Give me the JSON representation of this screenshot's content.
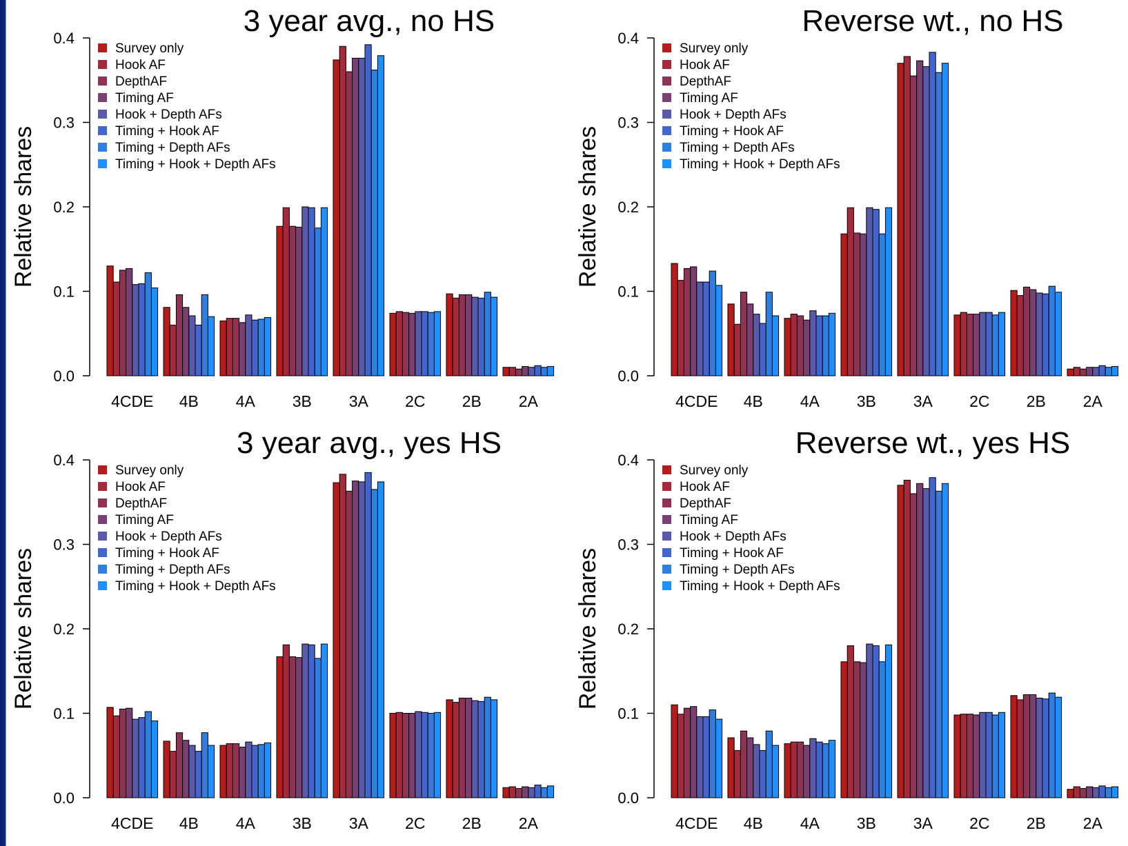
{
  "series_names": [
    "Survey only",
    "Hook AF",
    "DepthAF",
    "Timing AF",
    "Hook + Depth AFs",
    "Timing + Hook AF",
    "Timing + Depth AFs",
    "Timing + Hook + Depth AFs"
  ],
  "series_colors": [
    "#b71c1c",
    "#a52a3c",
    "#8e3356",
    "#7a3f73",
    "#5a5aaa",
    "#4466cc",
    "#2e7fe0",
    "#1e90ff"
  ],
  "chart_data": [
    {
      "type": "bar",
      "title": "3 year avg., no HS",
      "ylabel": "Relative shares",
      "ylim": [
        0,
        0.4
      ],
      "yticks": [
        "0.0",
        "0.1",
        "0.2",
        "0.3",
        "0.4"
      ],
      "categories": [
        "4CDE",
        "4B",
        "4A",
        "3B",
        "3A",
        "2C",
        "2B",
        "2A"
      ],
      "series": [
        {
          "name": "Survey only",
          "values": [
            0.13,
            0.081,
            0.065,
            0.177,
            0.374,
            0.074,
            0.097,
            0.01
          ]
        },
        {
          "name": "Hook AF",
          "values": [
            0.111,
            0.06,
            0.068,
            0.199,
            0.39,
            0.076,
            0.092,
            0.01
          ]
        },
        {
          "name": "DepthAF",
          "values": [
            0.125,
            0.096,
            0.068,
            0.177,
            0.36,
            0.075,
            0.096,
            0.008
          ]
        },
        {
          "name": "Timing AF",
          "values": [
            0.127,
            0.081,
            0.063,
            0.176,
            0.376,
            0.074,
            0.096,
            0.011
          ]
        },
        {
          "name": "Hook + Depth AFs",
          "values": [
            0.108,
            0.071,
            0.072,
            0.2,
            0.376,
            0.076,
            0.093,
            0.01
          ]
        },
        {
          "name": "Timing + Hook AF",
          "values": [
            0.109,
            0.06,
            0.066,
            0.199,
            0.392,
            0.076,
            0.092,
            0.012
          ]
        },
        {
          "name": "Timing + Depth AFs",
          "values": [
            0.122,
            0.096,
            0.067,
            0.175,
            0.362,
            0.075,
            0.099,
            0.01
          ]
        },
        {
          "name": "Timing + Hook + Depth AFs",
          "values": [
            0.104,
            0.07,
            0.069,
            0.199,
            0.379,
            0.076,
            0.093,
            0.011
          ]
        }
      ]
    },
    {
      "type": "bar",
      "title": "Reverse wt., no HS",
      "ylabel": "Relative shares",
      "ylim": [
        0,
        0.4
      ],
      "yticks": [
        "0.0",
        "0.1",
        "0.2",
        "0.3",
        "0.4"
      ],
      "categories": [
        "4CDE",
        "4B",
        "4A",
        "3B",
        "3A",
        "2C",
        "2B",
        "2A"
      ],
      "series": [
        {
          "name": "Survey only",
          "values": [
            0.133,
            0.085,
            0.068,
            0.168,
            0.37,
            0.072,
            0.101,
            0.008
          ]
        },
        {
          "name": "Hook AF",
          "values": [
            0.113,
            0.061,
            0.073,
            0.199,
            0.378,
            0.075,
            0.095,
            0.01
          ]
        },
        {
          "name": "DepthAF",
          "values": [
            0.127,
            0.099,
            0.071,
            0.169,
            0.355,
            0.073,
            0.105,
            0.008
          ]
        },
        {
          "name": "Timing AF",
          "values": [
            0.129,
            0.085,
            0.066,
            0.168,
            0.373,
            0.073,
            0.102,
            0.01
          ]
        },
        {
          "name": "Hook + Depth AFs",
          "values": [
            0.111,
            0.073,
            0.077,
            0.199,
            0.366,
            0.075,
            0.098,
            0.01
          ]
        },
        {
          "name": "Timing + Hook AF",
          "values": [
            0.111,
            0.062,
            0.071,
            0.197,
            0.383,
            0.075,
            0.097,
            0.012
          ]
        },
        {
          "name": "Timing + Depth AFs",
          "values": [
            0.124,
            0.099,
            0.071,
            0.168,
            0.359,
            0.072,
            0.106,
            0.01
          ]
        },
        {
          "name": "Timing + Hook + Depth AFs",
          "values": [
            0.107,
            0.071,
            0.074,
            0.199,
            0.37,
            0.075,
            0.099,
            0.011
          ]
        }
      ]
    },
    {
      "type": "bar",
      "title": "3 year avg., yes HS",
      "ylabel": "Relative shares",
      "ylim": [
        0,
        0.4
      ],
      "yticks": [
        "0.0",
        "0.1",
        "0.2",
        "0.3",
        "0.4"
      ],
      "categories": [
        "4CDE",
        "4B",
        "4A",
        "3B",
        "3A",
        "2C",
        "2B",
        "2A"
      ],
      "series": [
        {
          "name": "Survey only",
          "values": [
            0.107,
            0.067,
            0.062,
            0.167,
            0.373,
            0.1,
            0.116,
            0.012
          ]
        },
        {
          "name": "Hook AF",
          "values": [
            0.097,
            0.055,
            0.064,
            0.181,
            0.383,
            0.101,
            0.113,
            0.013
          ]
        },
        {
          "name": "DepthAF",
          "values": [
            0.105,
            0.077,
            0.064,
            0.167,
            0.363,
            0.1,
            0.118,
            0.011
          ]
        },
        {
          "name": "Timing AF",
          "values": [
            0.106,
            0.068,
            0.06,
            0.166,
            0.375,
            0.1,
            0.118,
            0.013
          ]
        },
        {
          "name": "Hook + Depth AFs",
          "values": [
            0.093,
            0.062,
            0.066,
            0.182,
            0.374,
            0.102,
            0.115,
            0.012
          ]
        },
        {
          "name": "Timing + Hook AF",
          "values": [
            0.095,
            0.055,
            0.062,
            0.181,
            0.385,
            0.101,
            0.114,
            0.015
          ]
        },
        {
          "name": "Timing + Depth AFs",
          "values": [
            0.102,
            0.077,
            0.063,
            0.165,
            0.365,
            0.1,
            0.119,
            0.012
          ]
        },
        {
          "name": "Timing + Hook + Depth AFs",
          "values": [
            0.091,
            0.062,
            0.065,
            0.182,
            0.374,
            0.101,
            0.116,
            0.014
          ]
        }
      ]
    },
    {
      "type": "bar",
      "title": "Reverse wt., yes HS",
      "ylabel": "Relative shares",
      "ylim": [
        0,
        0.4
      ],
      "yticks": [
        "0.0",
        "0.1",
        "0.2",
        "0.3",
        "0.4"
      ],
      "categories": [
        "4CDE",
        "4B",
        "4A",
        "3B",
        "3A",
        "2C",
        "2B",
        "2A"
      ],
      "series": [
        {
          "name": "Survey only",
          "values": [
            0.11,
            0.071,
            0.064,
            0.161,
            0.37,
            0.098,
            0.121,
            0.01
          ]
        },
        {
          "name": "Hook AF",
          "values": [
            0.099,
            0.056,
            0.066,
            0.18,
            0.376,
            0.099,
            0.116,
            0.013
          ]
        },
        {
          "name": "DepthAF",
          "values": [
            0.106,
            0.079,
            0.066,
            0.161,
            0.36,
            0.099,
            0.122,
            0.011
          ]
        },
        {
          "name": "Timing AF",
          "values": [
            0.108,
            0.071,
            0.062,
            0.16,
            0.372,
            0.098,
            0.122,
            0.013
          ]
        },
        {
          "name": "Hook + Depth AFs",
          "values": [
            0.096,
            0.063,
            0.07,
            0.182,
            0.366,
            0.101,
            0.118,
            0.012
          ]
        },
        {
          "name": "Timing + Hook AF",
          "values": [
            0.096,
            0.056,
            0.066,
            0.18,
            0.379,
            0.101,
            0.117,
            0.014
          ]
        },
        {
          "name": "Timing + Depth AFs",
          "values": [
            0.104,
            0.079,
            0.064,
            0.161,
            0.363,
            0.098,
            0.124,
            0.012
          ]
        },
        {
          "name": "Timing + Hook + Depth AFs",
          "values": [
            0.093,
            0.062,
            0.068,
            0.181,
            0.372,
            0.101,
            0.119,
            0.013
          ]
        }
      ]
    }
  ]
}
